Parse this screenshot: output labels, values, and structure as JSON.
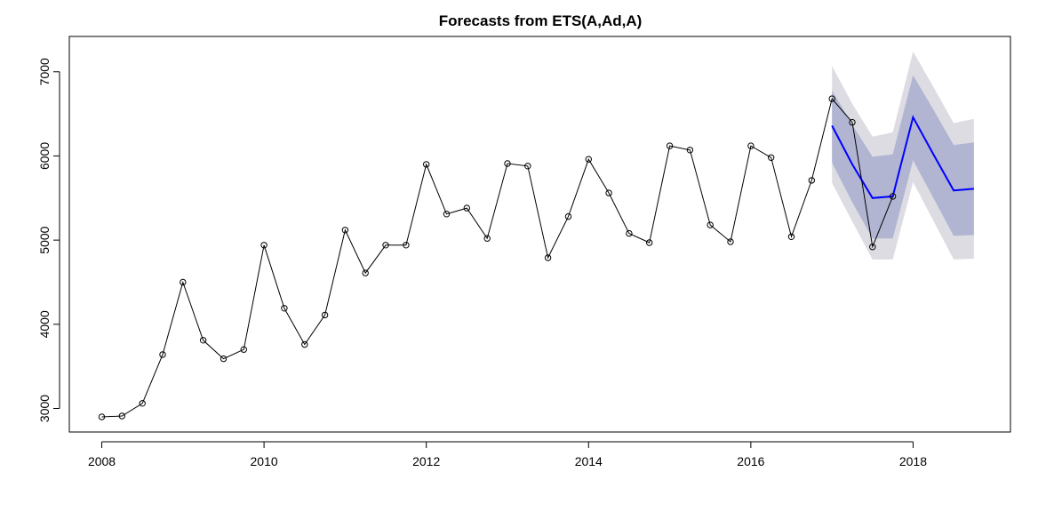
{
  "chart_data": {
    "type": "line",
    "title": "Forecasts from ETS(A,Ad,A)",
    "xlabel": "",
    "ylabel": "",
    "xlim": [
      2007.6,
      2019.2
    ],
    "ylim": [
      2720,
      7420
    ],
    "x_ticks": [
      2008,
      2010,
      2012,
      2014,
      2016,
      2018
    ],
    "y_ticks": [
      3000,
      4000,
      5000,
      6000,
      7000
    ],
    "grid": false,
    "legend": "none",
    "colors": {
      "observed": "#000000",
      "forecast": "#0000ff",
      "band95": "#dcdce2",
      "band80": "#b1b5d2"
    },
    "series": [
      {
        "style": "line-with-circles",
        "x": [
          2008.0,
          2008.25,
          2008.5,
          2008.75,
          2009.0,
          2009.25,
          2009.5,
          2009.75,
          2010.0,
          2010.25,
          2010.5,
          2010.75,
          2011.0,
          2011.25,
          2011.5,
          2011.75,
          2012.0,
          2012.25,
          2012.5,
          2012.75,
          2013.0,
          2013.25,
          2013.5,
          2013.75,
          2014.0,
          2014.25,
          2014.5,
          2014.75,
          2015.0,
          2015.25,
          2015.5,
          2015.75,
          2016.0,
          2016.25,
          2016.5,
          2016.75,
          2017.0,
          2017.25,
          2017.5,
          2017.75
        ],
        "values": [
          2900,
          2910,
          3060,
          3640,
          4500,
          3810,
          3590,
          3700,
          4940,
          4190,
          3760,
          4110,
          5120,
          4610,
          4940,
          4940,
          5900,
          5310,
          5380,
          5020,
          5910,
          5880,
          4790,
          5280,
          5960,
          5560,
          5080,
          4970,
          6120,
          6070,
          5180,
          4980,
          6120,
          5980,
          5040,
          5710,
          6680,
          6400,
          4920,
          5520
        ]
      },
      {
        "style": "line",
        "x": [
          2017.0,
          2017.25,
          2017.5,
          2017.75,
          2018.0,
          2018.25,
          2018.5,
          2018.75
        ],
        "values": [
          6360,
          5900,
          5500,
          5520,
          6460,
          6020,
          5590,
          5610
        ],
        "lo80": [
          5920,
          5450,
          5020,
          5020,
          5950,
          5500,
          5050,
          5060
        ],
        "hi80": [
          6780,
          6370,
          5990,
          6020,
          6960,
          6550,
          6130,
          6160
        ],
        "lo95": [
          5680,
          5220,
          4770,
          4770,
          5690,
          5230,
          4770,
          4780
        ],
        "hi95": [
          7070,
          6620,
          6230,
          6280,
          7240,
          6820,
          6390,
          6440
        ]
      }
    ]
  }
}
